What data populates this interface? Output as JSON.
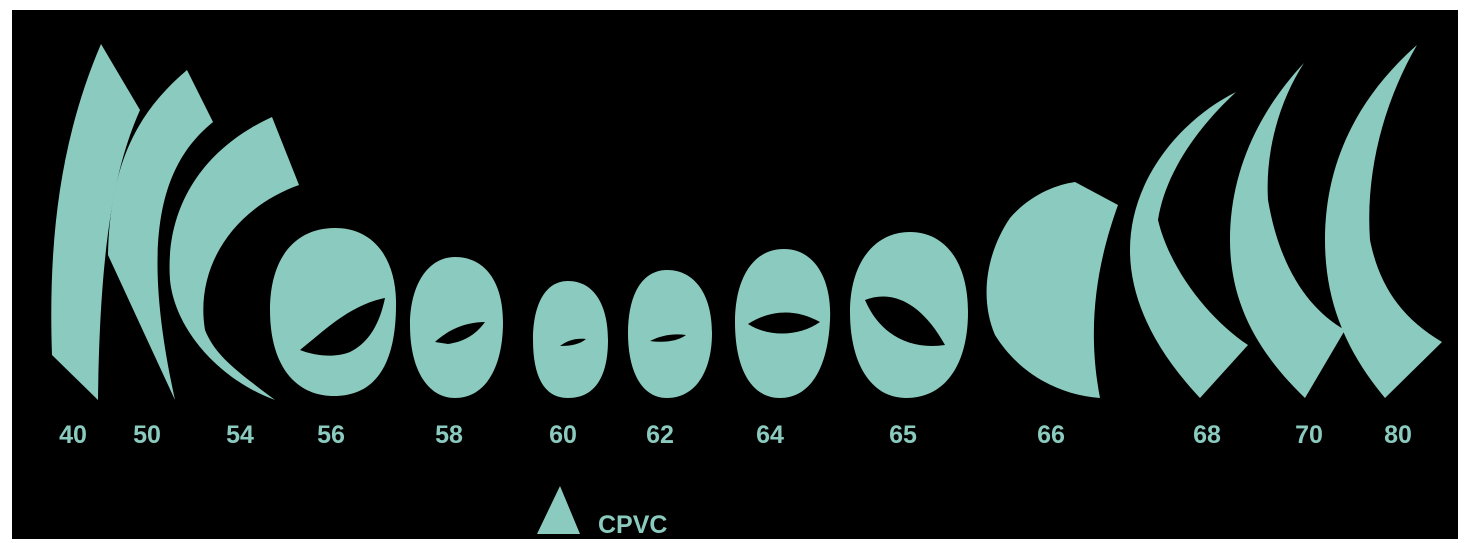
{
  "colors": {
    "shape": "#8bcbbf",
    "background": "#000000"
  },
  "labels": [
    "40",
    "50",
    "54",
    "56",
    "58",
    "60",
    "62",
    "64",
    "65",
    "66",
    "68",
    "70",
    "80"
  ],
  "legend": {
    "icon": "triangle-icon",
    "label": "CPVC"
  }
}
